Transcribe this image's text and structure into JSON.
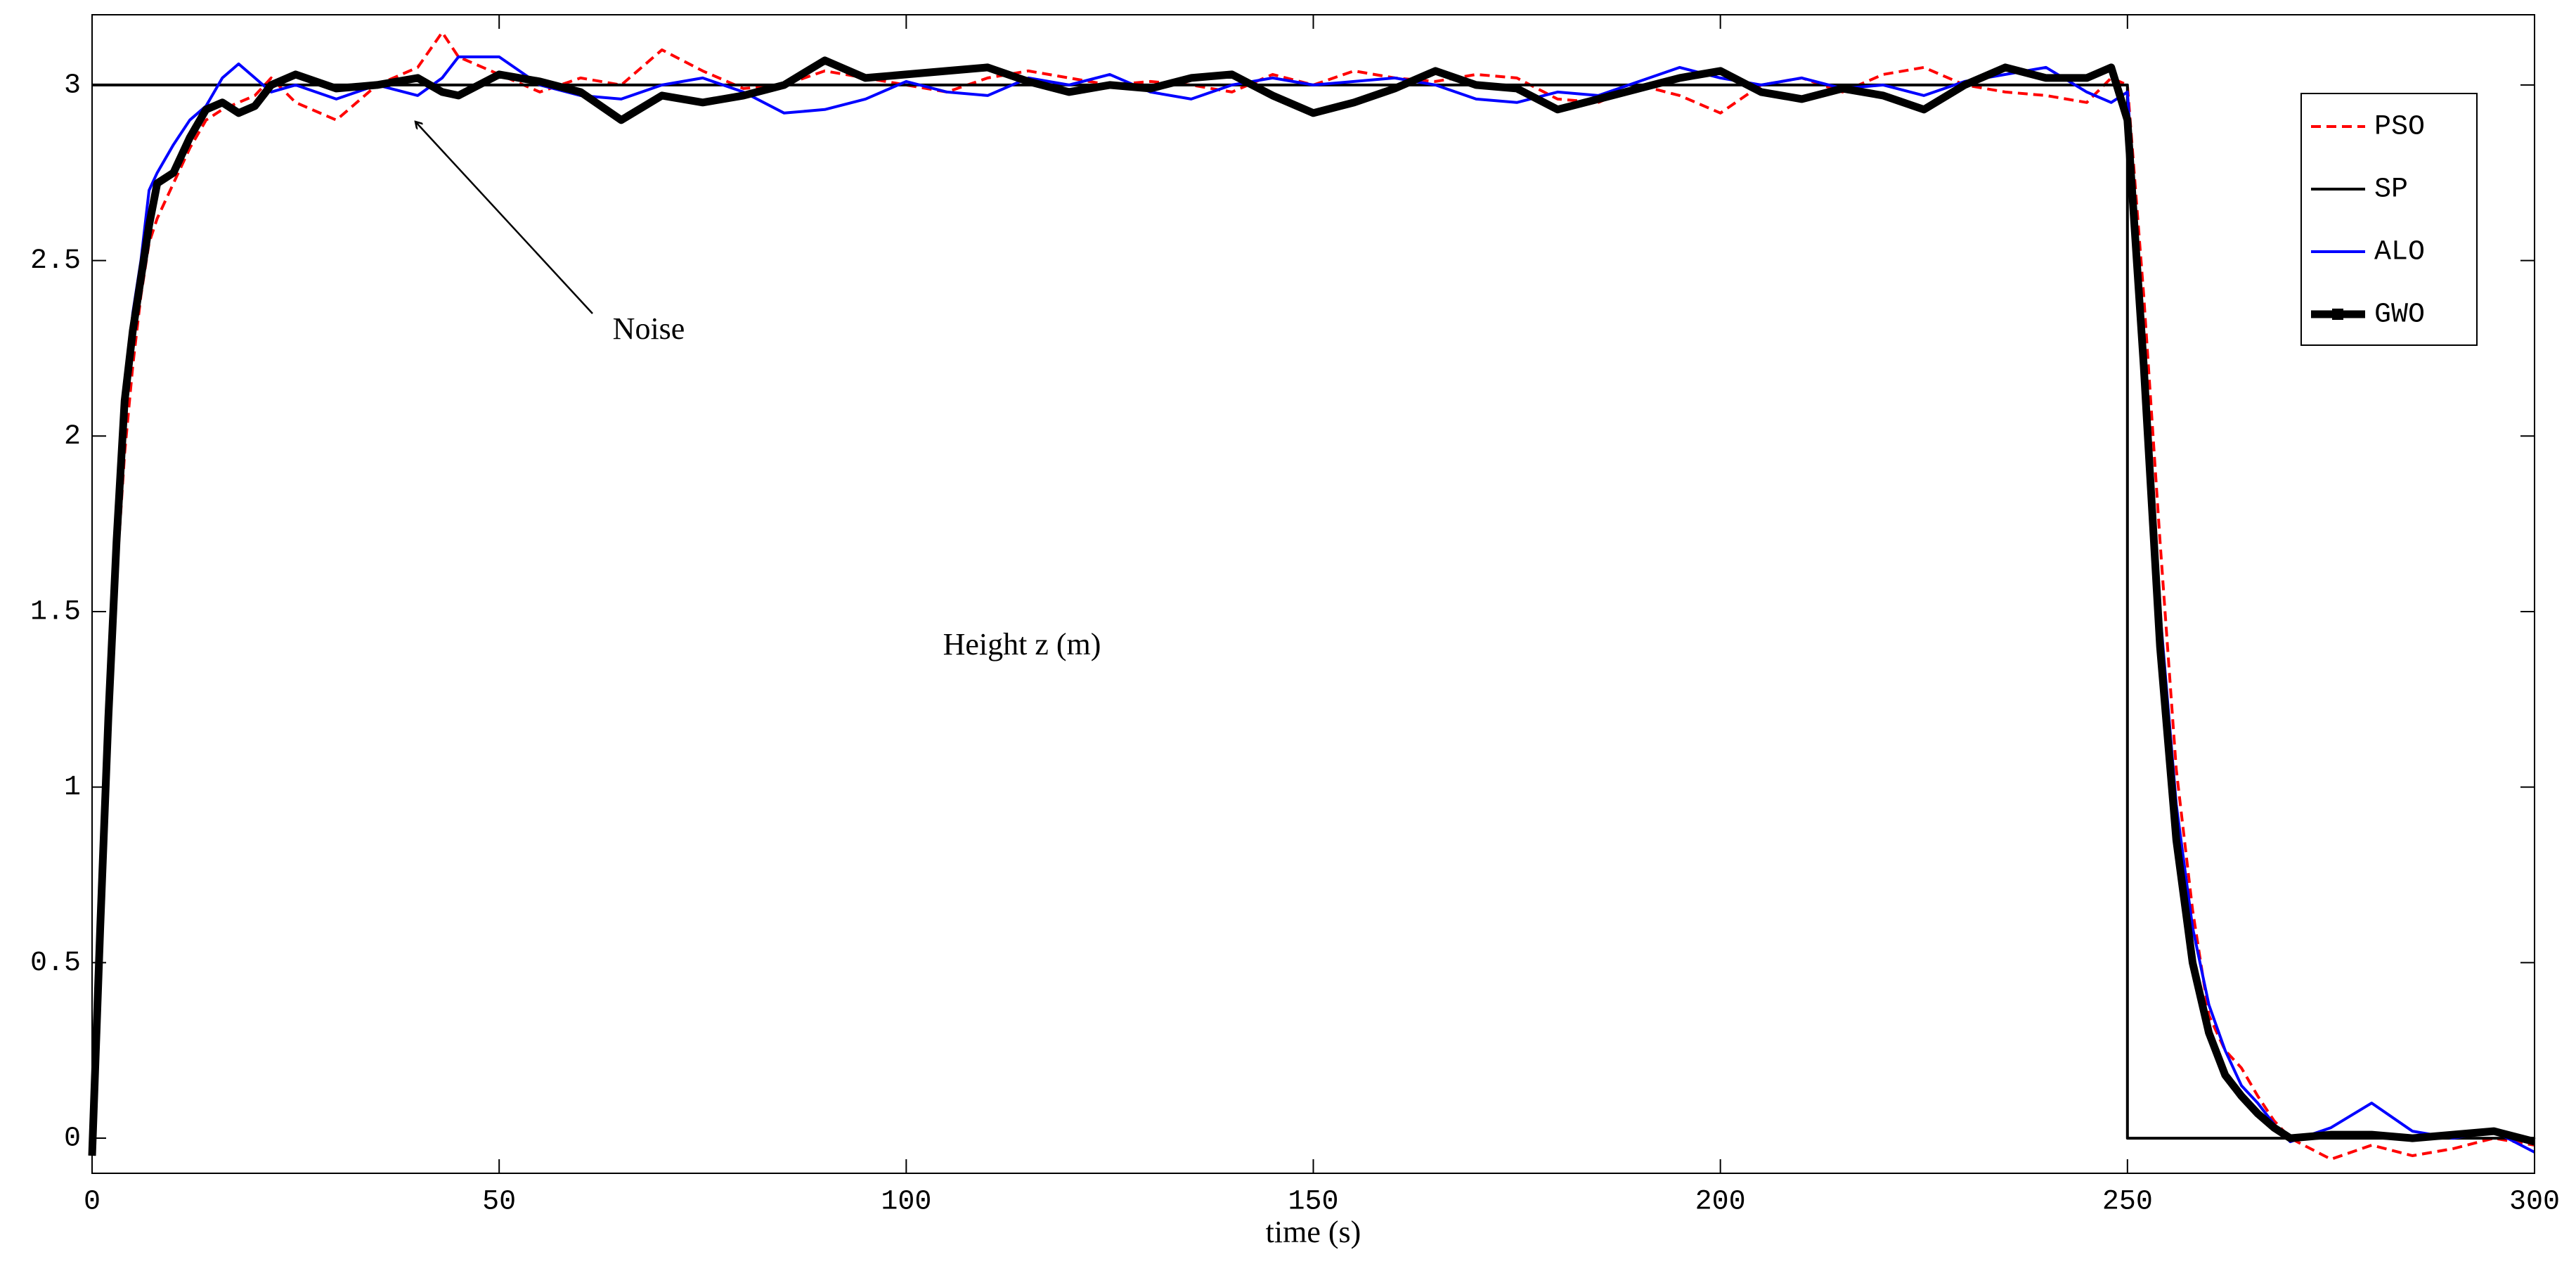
{
  "chart_data": {
    "type": "line",
    "xlabel": "time (s)",
    "ylabel": "Height z (m)",
    "annotation": "Noise",
    "x": [
      0,
      1,
      2,
      3,
      4,
      5,
      6,
      7,
      8,
      10,
      12,
      14,
      16,
      18,
      20,
      22,
      25,
      30,
      35,
      40,
      43,
      45,
      50,
      55,
      60,
      65,
      70,
      75,
      80,
      85,
      90,
      95,
      100,
      105,
      110,
      115,
      120,
      125,
      130,
      135,
      140,
      145,
      150,
      155,
      160,
      165,
      170,
      175,
      180,
      185,
      190,
      195,
      200,
      205,
      210,
      215,
      220,
      225,
      230,
      235,
      240,
      245,
      248,
      250,
      250,
      252,
      254,
      256,
      258,
      260,
      262,
      264,
      266,
      268,
      270,
      275,
      280,
      285,
      290,
      295,
      300
    ],
    "series": [
      {
        "name": "PSO",
        "color": "#ff0000",
        "line_style": "dashed",
        "values": [
          -0.03,
          0.55,
          1.1,
          1.6,
          1.95,
          2.2,
          2.4,
          2.55,
          2.62,
          2.72,
          2.82,
          2.9,
          2.93,
          2.95,
          2.97,
          3.02,
          2.95,
          2.9,
          3.0,
          3.05,
          3.15,
          3.08,
          3.03,
          2.98,
          3.02,
          3.0,
          3.1,
          3.04,
          2.99,
          3.0,
          3.04,
          3.02,
          3.0,
          2.98,
          3.02,
          3.04,
          3.02,
          3.0,
          3.01,
          3.0,
          2.98,
          3.03,
          3.0,
          3.04,
          3.02,
          3.01,
          3.03,
          3.02,
          2.96,
          2.95,
          3.0,
          2.97,
          2.92,
          3.0,
          3.02,
          2.98,
          3.03,
          3.05,
          3.0,
          2.98,
          2.97,
          2.95,
          3.02,
          3.0,
          3.0,
          2.4,
          1.7,
          1.05,
          0.65,
          0.35,
          0.25,
          0.2,
          0.12,
          0.05,
          0.0,
          -0.06,
          -0.02,
          -0.05,
          -0.03,
          0.0,
          -0.02
        ]
      },
      {
        "name": "SP",
        "color": "#000000",
        "line_style": "solid",
        "values": [
          3,
          3,
          3,
          3,
          3,
          3,
          3,
          3,
          3,
          3,
          3,
          3,
          3,
          3,
          3,
          3,
          3,
          3,
          3,
          3,
          3,
          3,
          3,
          3,
          3,
          3,
          3,
          3,
          3,
          3,
          3,
          3,
          3,
          3,
          3,
          3,
          3,
          3,
          3,
          3,
          3,
          3,
          3,
          3,
          3,
          3,
          3,
          3,
          3,
          3,
          3,
          3,
          3,
          3,
          3,
          3,
          3,
          3,
          3,
          3,
          3,
          3,
          3,
          3,
          0,
          0,
          0,
          0,
          0,
          0,
          0,
          0,
          0,
          0,
          0,
          0,
          0,
          0,
          0,
          0,
          0
        ]
      },
      {
        "name": "ALO",
        "color": "#0000ff",
        "line_style": "solid",
        "values": [
          -0.02,
          0.6,
          1.2,
          1.7,
          2.1,
          2.35,
          2.5,
          2.7,
          2.75,
          2.83,
          2.9,
          2.94,
          3.02,
          3.06,
          3.02,
          2.98,
          3.0,
          2.96,
          3.0,
          2.97,
          3.02,
          3.08,
          3.08,
          3.0,
          2.97,
          2.96,
          3.0,
          3.02,
          2.98,
          2.92,
          2.93,
          2.96,
          3.01,
          2.98,
          2.97,
          3.02,
          3.0,
          3.03,
          2.98,
          2.96,
          3.0,
          3.02,
          3.0,
          3.01,
          3.02,
          3.0,
          2.96,
          2.95,
          2.98,
          2.97,
          3.01,
          3.05,
          3.02,
          3.0,
          3.02,
          2.99,
          3.0,
          2.97,
          3.01,
          3.03,
          3.05,
          2.98,
          2.95,
          2.98,
          2.98,
          2.3,
          1.5,
          0.95,
          0.6,
          0.38,
          0.25,
          0.15,
          0.1,
          0.04,
          -0.01,
          0.03,
          0.1,
          0.02,
          0.0,
          0.02,
          -0.04
        ]
      },
      {
        "name": "GWO",
        "color": "#000000",
        "line_style": "thick",
        "values": [
          -0.05,
          0.6,
          1.2,
          1.7,
          2.1,
          2.3,
          2.45,
          2.6,
          2.72,
          2.75,
          2.85,
          2.93,
          2.95,
          2.92,
          2.94,
          3.0,
          3.03,
          2.99,
          3.0,
          3.02,
          2.98,
          2.97,
          3.03,
          3.01,
          2.98,
          2.9,
          2.97,
          2.95,
          2.97,
          3.0,
          3.07,
          3.02,
          3.03,
          3.04,
          3.05,
          3.01,
          2.98,
          3.0,
          2.99,
          3.02,
          3.03,
          2.97,
          2.92,
          2.95,
          2.99,
          3.04,
          3.0,
          2.99,
          2.93,
          2.96,
          2.99,
          3.02,
          3.04,
          2.98,
          2.96,
          2.99,
          2.97,
          2.93,
          3.0,
          3.05,
          3.02,
          3.02,
          3.05,
          2.9,
          2.9,
          2.2,
          1.4,
          0.85,
          0.5,
          0.3,
          0.18,
          0.12,
          0.07,
          0.03,
          0.0,
          0.01,
          0.01,
          0.0,
          0.01,
          0.02,
          -0.01
        ]
      }
    ],
    "xlim": [
      0,
      300
    ],
    "xticks": [
      0,
      50,
      100,
      150,
      200,
      250,
      300
    ],
    "ylim": [
      -0.1,
      3.2
    ],
    "yticks": [
      0,
      0.5,
      1,
      1.5,
      2,
      2.5,
      3
    ],
    "grid": false,
    "legend": "upper right"
  }
}
